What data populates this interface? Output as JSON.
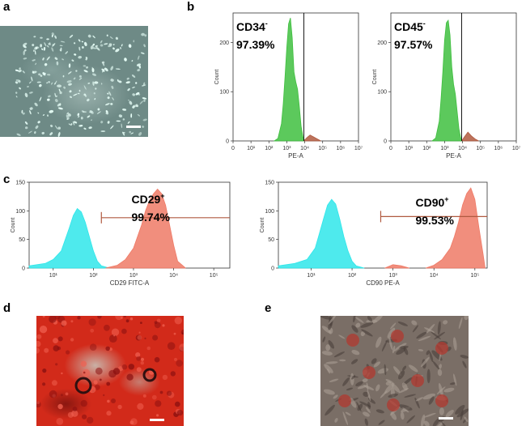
{
  "panels": {
    "a": "a",
    "b": "b",
    "c": "c",
    "d": "d",
    "e": "e"
  },
  "colors": {
    "green": "#3fbf3f",
    "cyan": "#2fe6ea",
    "salmon": "#ef7a66",
    "gate": "#b05a40"
  },
  "chart_data": [
    {
      "type": "area",
      "id": "cd34",
      "title": "CD34⁻",
      "title_base": "CD34",
      "title_sup": "-",
      "percent": "97.39%",
      "xlabel": "PE-A",
      "ylabel": "Count",
      "x_log_range": [
        0,
        7
      ],
      "x_ticks": [
        "0",
        "10¹",
        "10²",
        "10³",
        "10⁴",
        "10⁵",
        "10⁶",
        "10⁷"
      ],
      "ylim": [
        0,
        260
      ],
      "y_ticks": [
        0,
        100,
        200
      ],
      "gate_x_log": 3.95,
      "series": [
        {
          "name": "CD34",
          "color": "#3fbf3f",
          "x": [
            2.3,
            2.5,
            2.7,
            2.8,
            2.9,
            3.0,
            3.1,
            3.2,
            3.3,
            3.4,
            3.5,
            3.6,
            3.7,
            3.8,
            3.9,
            4.0
          ],
          "y": [
            0,
            5,
            35,
            75,
            130,
            190,
            238,
            250,
            210,
            140,
            120,
            105,
            70,
            30,
            8,
            0
          ]
        },
        {
          "name": "positive",
          "color": "#b05a40",
          "x": [
            3.95,
            4.1,
            4.3,
            4.5,
            4.7,
            4.9
          ],
          "y": [
            0,
            6,
            12,
            8,
            4,
            0
          ]
        }
      ]
    },
    {
      "type": "area",
      "id": "cd45",
      "title": "CD45⁻",
      "title_base": "CD45",
      "title_sup": "-",
      "percent": "97.57%",
      "xlabel": "PE-A",
      "ylabel": "Count",
      "x_log_range": [
        0,
        7
      ],
      "x_ticks": [
        "0",
        "10¹",
        "10²",
        "10³",
        "10⁴",
        "10⁵",
        "10⁶",
        "10⁷"
      ],
      "ylim": [
        0,
        260
      ],
      "y_ticks": [
        0,
        100,
        200
      ],
      "gate_x_log": 3.95,
      "series": [
        {
          "name": "CD45",
          "color": "#3fbf3f",
          "x": [
            2.3,
            2.5,
            2.7,
            2.8,
            2.9,
            3.0,
            3.1,
            3.2,
            3.3,
            3.4,
            3.5,
            3.6,
            3.7,
            3.8,
            3.9,
            4.0
          ],
          "y": [
            0,
            6,
            40,
            85,
            140,
            205,
            240,
            245,
            215,
            150,
            115,
            95,
            60,
            25,
            6,
            0
          ]
        },
        {
          "name": "positive",
          "color": "#b05a40",
          "x": [
            3.95,
            4.1,
            4.3,
            4.5,
            4.7,
            4.9
          ],
          "y": [
            0,
            8,
            18,
            10,
            4,
            0
          ]
        }
      ]
    },
    {
      "type": "area",
      "id": "cd29",
      "title": "CD29⁺",
      "title_base": "CD29",
      "title_sup": "+",
      "percent": "99.74%",
      "xlabel": "CD29 FITC-A",
      "ylabel": "Count",
      "x_log_range": [
        0.4,
        5.4
      ],
      "x_ticks": [
        "10¹",
        "10²",
        "10³",
        "10⁴",
        "10⁵"
      ],
      "x_tick_logs": [
        1,
        2,
        3,
        4,
        5
      ],
      "ylim": [
        0,
        150
      ],
      "y_ticks": [
        0,
        50,
        100,
        150
      ],
      "gate_range_log": [
        2.2,
        5.4
      ],
      "gate_y": 88,
      "series": [
        {
          "name": "control",
          "color": "#2fe6ea",
          "x": [
            0.4,
            0.8,
            1.0,
            1.2,
            1.3,
            1.4,
            1.5,
            1.6,
            1.7,
            1.8,
            1.9,
            2.0,
            2.1,
            2.2,
            2.4
          ],
          "y": [
            4,
            8,
            15,
            30,
            50,
            70,
            92,
            104,
            98,
            80,
            55,
            30,
            12,
            4,
            0
          ]
        },
        {
          "name": "CD29",
          "color": "#ef7a66",
          "x": [
            2.3,
            2.6,
            2.8,
            3.0,
            3.2,
            3.3,
            3.4,
            3.5,
            3.6,
            3.7,
            3.8,
            3.9,
            4.0,
            4.1,
            4.3
          ],
          "y": [
            0,
            5,
            15,
            35,
            75,
            100,
            118,
            130,
            138,
            130,
            110,
            75,
            40,
            12,
            0
          ]
        }
      ]
    },
    {
      "type": "area",
      "id": "cd90",
      "title": "CD90⁺",
      "title_base": "CD90",
      "title_sup": "+",
      "percent": "99.53%",
      "xlabel": "CD90 PE-A",
      "ylabel": "Count",
      "x_log_range": [
        0.2,
        5.3
      ],
      "x_ticks": [
        "10¹",
        "10²",
        "10³",
        "10⁴",
        "10⁵"
      ],
      "x_tick_logs": [
        1,
        2,
        3,
        4,
        5
      ],
      "ylim": [
        0,
        150
      ],
      "y_ticks": [
        0,
        50,
        100,
        150
      ],
      "gate_range_log": [
        2.7,
        5.3
      ],
      "gate_y": 90,
      "series": [
        {
          "name": "control",
          "color": "#2fe6ea",
          "x": [
            0.2,
            0.6,
            0.9,
            1.1,
            1.2,
            1.3,
            1.4,
            1.5,
            1.6,
            1.7,
            1.8,
            1.9,
            2.0,
            2.1,
            2.3
          ],
          "y": [
            4,
            8,
            15,
            35,
            60,
            85,
            110,
            120,
            112,
            85,
            55,
            30,
            12,
            4,
            0
          ]
        },
        {
          "name": "lowpos",
          "color": "#ef7a66",
          "x": [
            2.8,
            3.0,
            3.2,
            3.4
          ],
          "y": [
            0,
            6,
            4,
            0
          ]
        },
        {
          "name": "CD90",
          "color": "#ef7a66",
          "x": [
            3.8,
            4.0,
            4.2,
            4.4,
            4.5,
            4.6,
            4.7,
            4.8,
            4.9,
            5.0,
            5.1,
            5.2,
            5.25
          ],
          "y": [
            0,
            5,
            15,
            35,
            55,
            80,
            110,
            130,
            140,
            120,
            70,
            25,
            0
          ]
        }
      ]
    }
  ]
}
